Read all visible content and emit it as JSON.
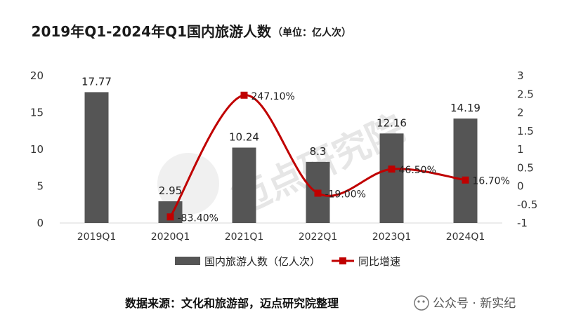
{
  "title": "2019年Q1-2024年Q1国内旅游人数",
  "unit": "（单位：亿人次）",
  "source": "数据来源：文化和旅游部，迈点研究院整理",
  "watermark": {
    "brand": "迈点研究院",
    "account": "公众号 · 新实纪"
  },
  "colors": {
    "bar": "#555555",
    "line": "#c00000",
    "grid": "#d9d9d9"
  },
  "chart_data": {
    "type": "bar",
    "categories": [
      "2019Q1",
      "2020Q1",
      "2021Q1",
      "2022Q1",
      "2023Q1",
      "2024Q1"
    ],
    "series": [
      {
        "name": "国内旅游人数（亿人次）",
        "type": "bar",
        "axis": "left",
        "values": [
          17.77,
          2.95,
          10.24,
          8.3,
          12.16,
          14.19
        ],
        "labels": [
          "17.77",
          "2.95",
          "10.24",
          "8.3",
          "12.16",
          "14.19"
        ]
      },
      {
        "name": "同比增速",
        "type": "line",
        "smooth": true,
        "axis": "right",
        "values": [
          null,
          -0.834,
          2.471,
          -0.19,
          0.465,
          0.167
        ],
        "labels": [
          "",
          "-83.40%",
          "247.10%",
          "-19.00%",
          "46.50%",
          "16.70%"
        ]
      }
    ],
    "y_left": {
      "ylim": [
        0,
        20
      ],
      "ticks": [
        "0",
        "5",
        "10",
        "15",
        "20"
      ],
      "tick_values": [
        0,
        5,
        10,
        15,
        20
      ]
    },
    "y_right": {
      "ylim": [
        -1,
        3
      ],
      "ticks": [
        "-1",
        "-0.5",
        "0",
        "0.5",
        "1",
        "1.5",
        "2",
        "2.5",
        "3"
      ],
      "tick_values": [
        -1,
        -0.5,
        0,
        0.5,
        1,
        1.5,
        2,
        2.5,
        3
      ]
    },
    "legend_position": "bottom"
  }
}
